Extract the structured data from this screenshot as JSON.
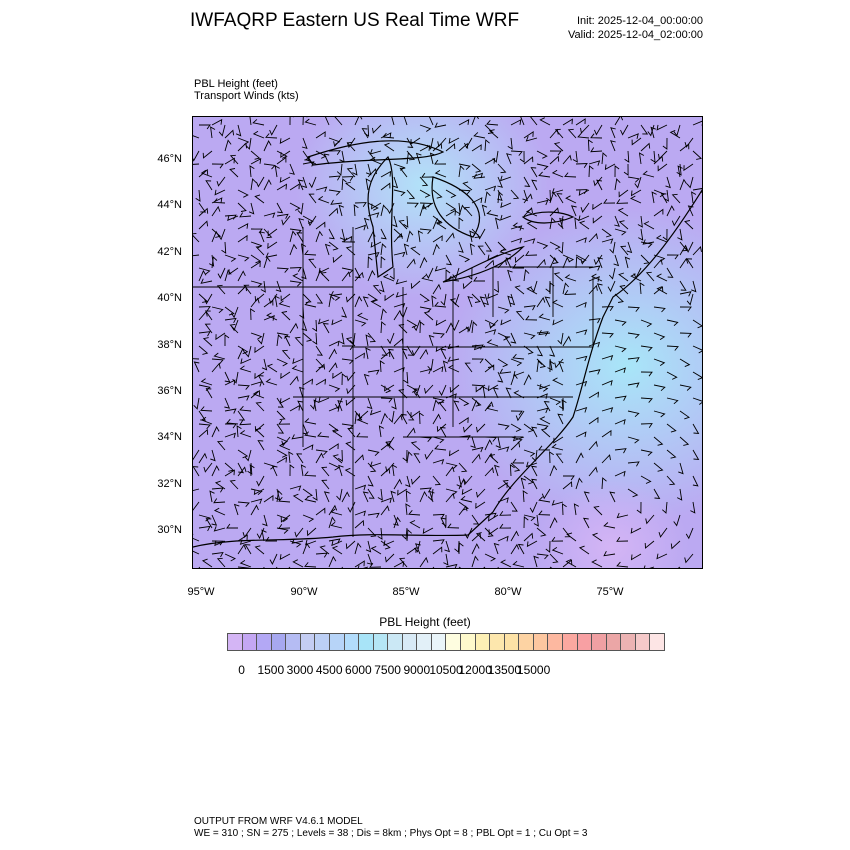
{
  "header": {
    "title": "IWFAQRP Eastern US Real Time WRF",
    "init": "Init: 2025-12-04_00:00:00",
    "valid": "Valid: 2025-12-04_02:00:00"
  },
  "fields": {
    "field1": "PBL Height   (feet)",
    "field2": "Transport Winds   (kts)"
  },
  "map": {
    "lat_labels": [
      "46°N",
      "44°N",
      "42°N",
      "40°N",
      "38°N",
      "36°N",
      "34°N",
      "32°N",
      "30°N"
    ],
    "lon_labels": [
      "95°W",
      "90°W",
      "85°W",
      "80°W",
      "75°W"
    ]
  },
  "colorbar": {
    "title": "PBL Height  (feet)",
    "labels": [
      "0",
      "1500",
      "3000",
      "4500",
      "6000",
      "7500",
      "9000",
      "10500",
      "12000",
      "13500",
      "15000"
    ],
    "colors": [
      "#d4b5f5",
      "#c4a7f3",
      "#b3a8f5",
      "#a7a8f0",
      "#b5bcf3",
      "#c4cdf3",
      "#bccff5",
      "#b7d4f8",
      "#b2dcfb",
      "#a8e4f8",
      "#b5e6f5",
      "#cbe8f5",
      "#d8eaf6",
      "#e2f0f8",
      "#eaf5fa",
      "#fefde0",
      "#fef9cc",
      "#fdf0b5",
      "#fde7ad",
      "#fde2a6",
      "#fdd3a3",
      "#fdc7a0",
      "#fdb8a0",
      "#fba8a0",
      "#f8a0a3",
      "#f0a0a3",
      "#eba6a6",
      "#ecb3b3",
      "#f5c9c9",
      "#fde5e5"
    ]
  },
  "footer": {
    "line1": "OUTPUT FROM WRF V4.6.1 MODEL",
    "line2": "WE = 310 ; SN = 275 ; Levels = 38 ; Dis = 8km ; Phys Opt = 8 ; PBL Opt = 1 ; Cu Opt = 3"
  }
}
